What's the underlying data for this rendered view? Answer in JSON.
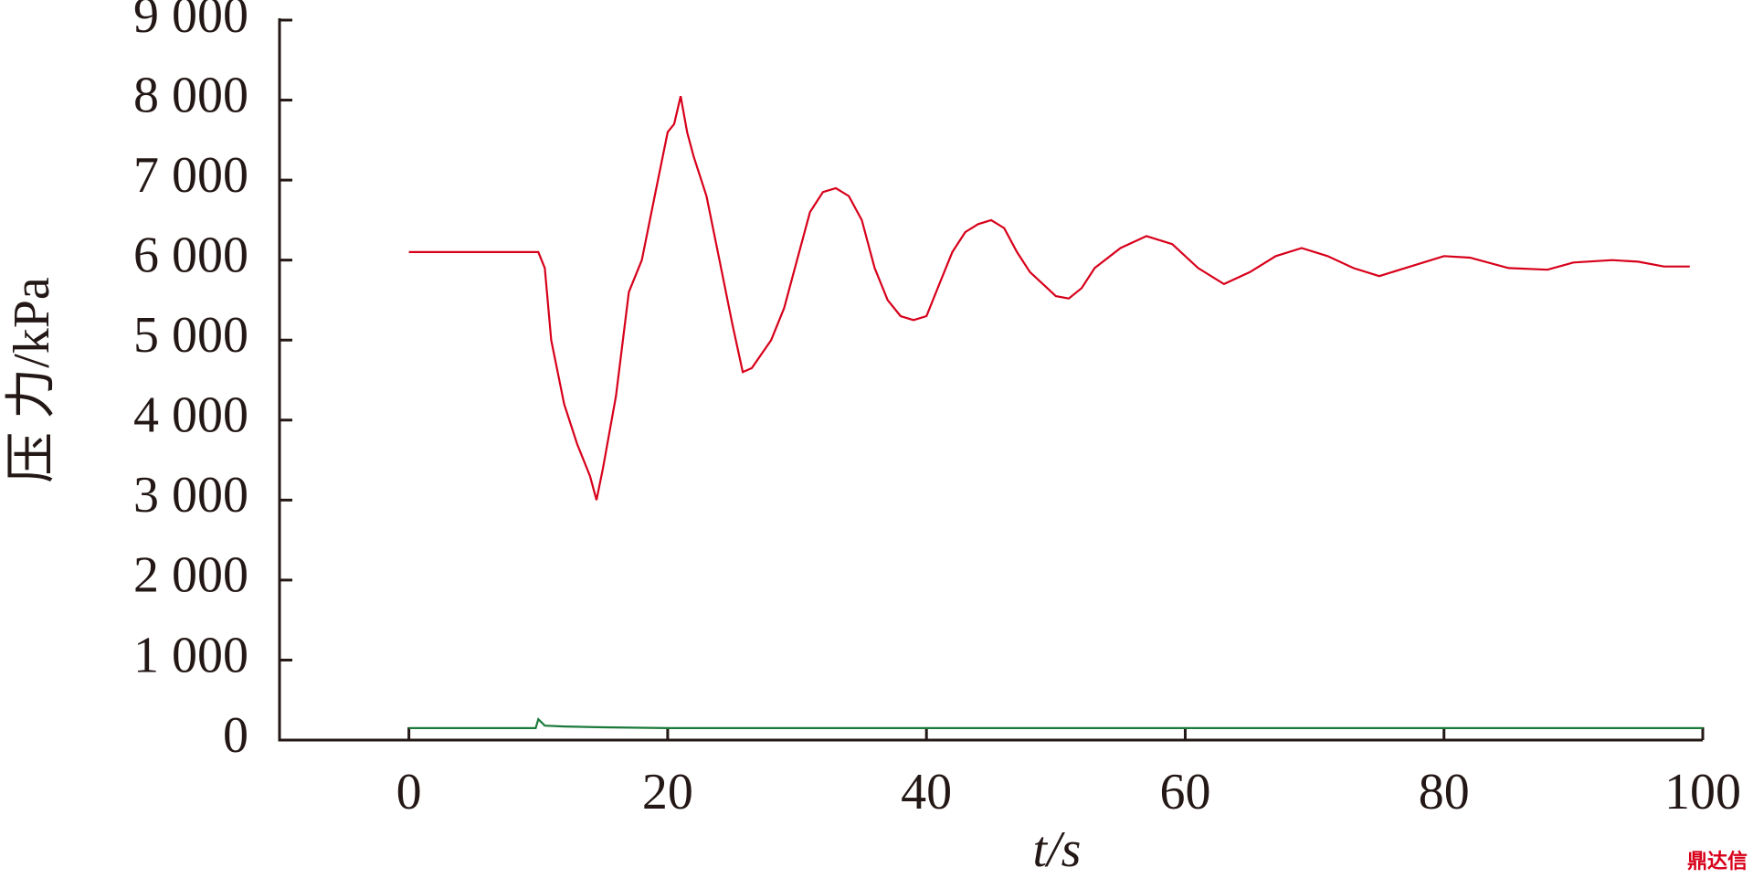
{
  "chart_data": {
    "type": "line",
    "y_label": "压 力/kPa",
    "x_label": "t/s",
    "watermark": "鼎达信",
    "xlim": [
      -10,
      100
    ],
    "xticks": [
      0,
      20,
      40,
      60,
      80,
      100
    ],
    "ylim": [
      0,
      9000
    ],
    "yticks": [
      0,
      {
        "value": 1000,
        "label": "1 000"
      },
      {
        "value": 2000,
        "label": "2 000"
      },
      {
        "value": 3000,
        "label": "3 000"
      },
      {
        "value": 4000,
        "label": "4 000"
      },
      {
        "value": 5000,
        "label": "5 000"
      },
      {
        "value": 6000,
        "label": "6 000"
      },
      {
        "value": 7000,
        "label": "7 000"
      },
      {
        "value": 8000,
        "label": "8 000"
      },
      {
        "value": 9000,
        "label": "9 000"
      }
    ],
    "series": [
      {
        "color": "#d7001a",
        "x": [
          0,
          10,
          10.5,
          11,
          12,
          13,
          14,
          14.5,
          15,
          16,
          17,
          18,
          19,
          20,
          20.5,
          21,
          21.5,
          22,
          23,
          24,
          25,
          25.8,
          26.5,
          28,
          29,
          30,
          31,
          32,
          33,
          34,
          35,
          36,
          37,
          38,
          39,
          40,
          41,
          42,
          43,
          44,
          45,
          46,
          47,
          48,
          49,
          50,
          51,
          52,
          53,
          55,
          57,
          59,
          61,
          63,
          65,
          67,
          69,
          71,
          73,
          75,
          77,
          80,
          82,
          85,
          88,
          90,
          93,
          95,
          97,
          99
        ],
        "values": [
          6100,
          6100,
          5900,
          5000,
          4200,
          3700,
          3300,
          3000,
          3400,
          4300,
          5600,
          6000,
          6800,
          7600,
          7700,
          8050,
          7600,
          7300,
          6800,
          6000,
          5200,
          4600,
          4650,
          5000,
          5400,
          6000,
          6600,
          6850,
          6900,
          6800,
          6500,
          5900,
          5500,
          5300,
          5250,
          5300,
          5700,
          6100,
          6350,
          6450,
          6500,
          6400,
          6100,
          5850,
          5700,
          5550,
          5520,
          5650,
          5900,
          6150,
          6300,
          6200,
          5900,
          5700,
          5850,
          6050,
          6150,
          6050,
          5900,
          5800,
          5900,
          6050,
          6030,
          5900,
          5880,
          5970,
          6000,
          5980,
          5920,
          5920
        ]
      },
      {
        "color": "#1a7a3a",
        "x": [
          0,
          9.8,
          10,
          10.5,
          12,
          15,
          20,
          30,
          40,
          60,
          100
        ],
        "values": [
          150,
          150,
          260,
          180,
          170,
          160,
          150,
          150,
          150,
          150,
          150
        ]
      }
    ]
  }
}
